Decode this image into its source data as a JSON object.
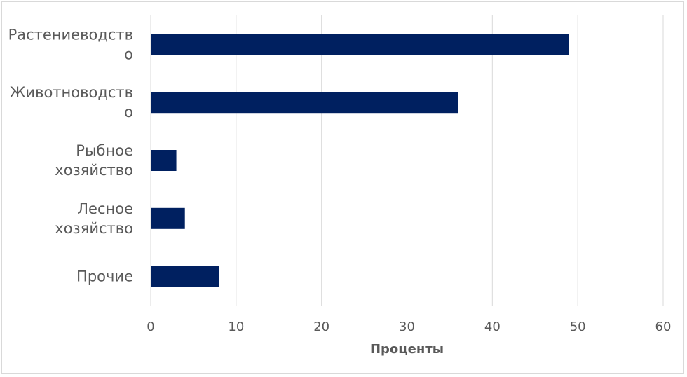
{
  "chart_data": {
    "type": "bar",
    "orientation": "horizontal",
    "categories": [
      [
        "Растениеводств",
        "о"
      ],
      [
        "Животноводств",
        "о"
      ],
      [
        "Рыбное",
        "хозяйство"
      ],
      [
        "Лесное",
        "хозяйство"
      ],
      [
        "Прочие"
      ]
    ],
    "values": [
      49,
      36,
      3,
      4,
      8
    ],
    "xlabel": "Проценты",
    "ylabel": "",
    "title": "",
    "xlim": [
      0,
      60
    ],
    "xticks": [
      "0",
      "10",
      "20",
      "30",
      "40",
      "50",
      "60"
    ],
    "grid": "vertical",
    "legend": "none",
    "colors": {
      "bar": "#002060",
      "grid": "#d9d9d9",
      "text": "#595959",
      "border": "#d9d9d9"
    }
  }
}
